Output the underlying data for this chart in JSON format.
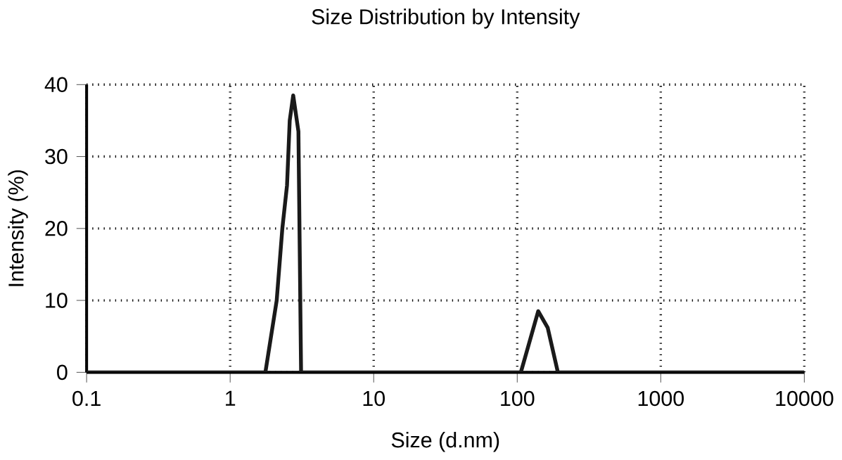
{
  "chart_data": {
    "type": "line",
    "title": "Size Distribution by Intensity",
    "xlabel": "Size (d.nm)",
    "ylabel": "Intensity (%)",
    "log": "x",
    "grid": true,
    "xlim": [
      0.1,
      10000
    ],
    "xticks": [
      0.1,
      1,
      10,
      100,
      1000,
      10000
    ],
    "ylim": [
      0,
      40
    ],
    "yticks": [
      0,
      10,
      20,
      30,
      40
    ],
    "series": [
      {
        "color": "#1a1a1a",
        "x": [
          0.1,
          1.76,
          2.11,
          2.31,
          2.49,
          2.6,
          2.75,
          2.99,
          3.12,
          10,
          106,
          140,
          163,
          192,
          1000,
          10000
        ],
        "values": [
          0,
          0,
          10,
          20,
          26,
          35,
          38.5,
          33.5,
          0,
          0,
          0,
          8.5,
          6.2,
          0,
          0,
          0
        ]
      }
    ]
  }
}
